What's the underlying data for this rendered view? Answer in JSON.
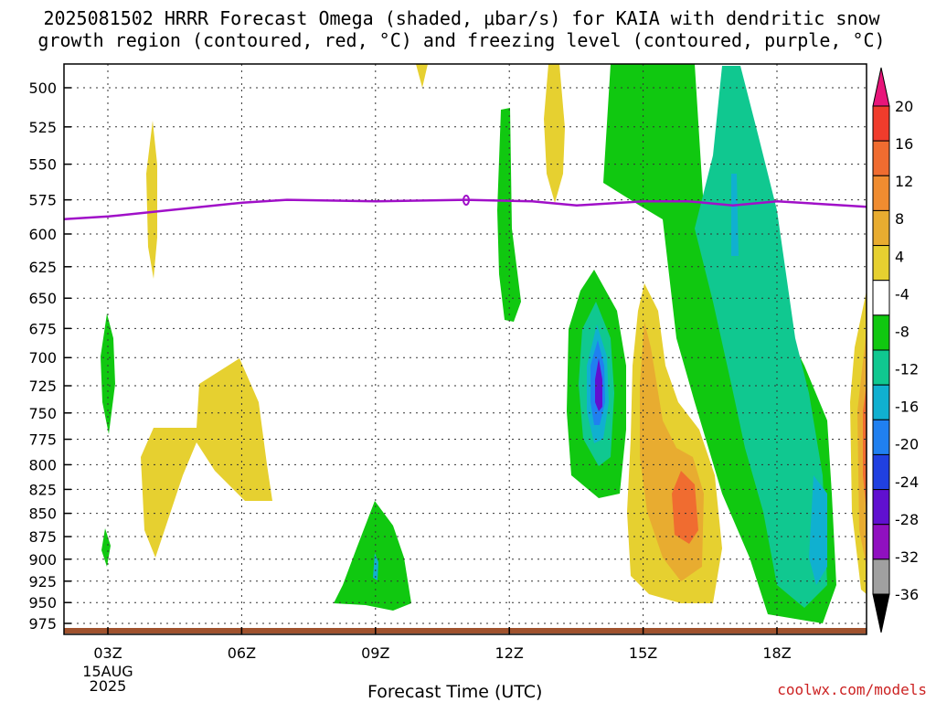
{
  "title_line1": "2025081502 HRRR Forecast Omega (shaded, μbar/s) for KAIA with dendritic snow",
  "title_line2": "growth region (contoured, red, °C) and freezing level (contoured, purple, °C)",
  "footer": "coolwx.com/models",
  "chart_data": {
    "type": "contour",
    "xlabel": "Forecast Time (UTC)",
    "ylabel": "",
    "x_ticks": [
      "03Z",
      "06Z",
      "09Z",
      "12Z",
      "15Z",
      "18Z"
    ],
    "x_date_label_1": "15AUG",
    "x_date_label_2": "2025",
    "y_ticks": [
      500,
      525,
      550,
      575,
      600,
      625,
      650,
      675,
      700,
      725,
      750,
      775,
      800,
      825,
      850,
      875,
      900,
      925,
      950,
      975
    ],
    "y_scale": "log-pressure, inverted",
    "grid": true,
    "colorbar": {
      "labels": [
        "20",
        "16",
        "12",
        "8",
        "4",
        "-4",
        "-8",
        "-12",
        "-16",
        "-20",
        "-24",
        "-28",
        "-32",
        "-36"
      ],
      "colors": [
        "#e8157a",
        "#f03c2c",
        "#f06c30",
        "#f08c30",
        "#e8ac30",
        "#e6d030",
        "#ffffff",
        "#10c810",
        "#10c890",
        "#10b0d0",
        "#2080f0",
        "#2040e0",
        "#6010d0",
        "#9010c0",
        "#a0a0a0",
        "#000000"
      ]
    },
    "freezing_level_label": "0",
    "freezing_level_hpa": [
      [
        2.0,
        589
      ],
      [
        3.0,
        587
      ],
      [
        4.5,
        582
      ],
      [
        6.0,
        577
      ],
      [
        7.0,
        575
      ],
      [
        9.0,
        576
      ],
      [
        11.0,
        575
      ],
      [
        12.5,
        576
      ],
      [
        13.5,
        579
      ],
      [
        15.0,
        576
      ],
      [
        16.0,
        576
      ],
      [
        17.0,
        579
      ],
      [
        18.0,
        576
      ],
      [
        19.0,
        578
      ],
      [
        20.0,
        580
      ]
    ]
  }
}
